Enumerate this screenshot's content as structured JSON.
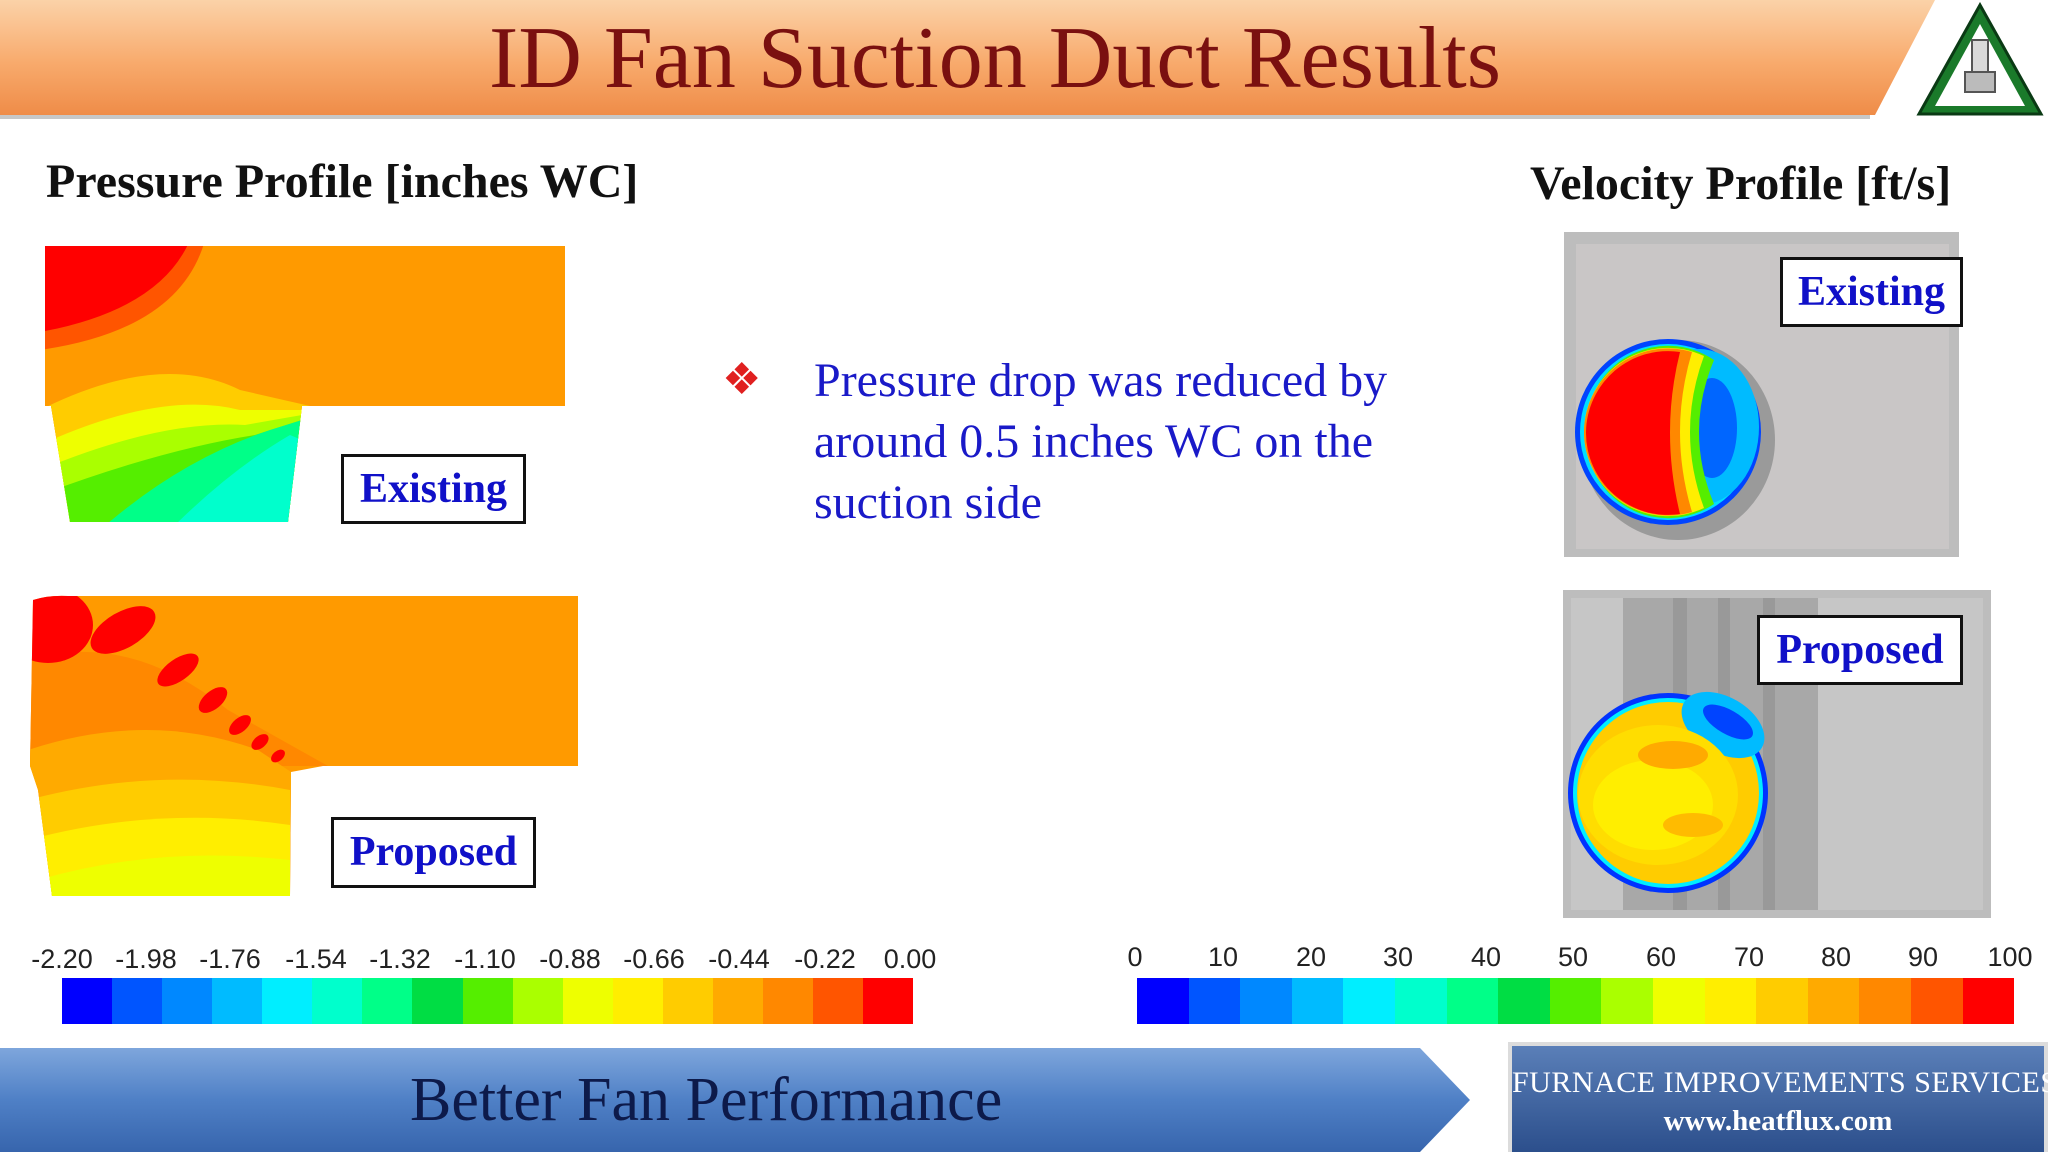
{
  "title": "ID Fan Suction Duct Results",
  "pressure": {
    "heading": "Pressure Profile [inches WC]",
    "existing_label": "Existing",
    "proposed_label": "Proposed",
    "scale_ticks": [
      "-2.20",
      "-1.98",
      "-1.76",
      "-1.54",
      "-1.32",
      "-1.10",
      "-0.88",
      "-0.66",
      "-0.44",
      "-0.22",
      "0.00"
    ]
  },
  "velocity": {
    "heading": "Velocity Profile [ft/s]",
    "existing_label": "Existing",
    "proposed_label": "Proposed",
    "scale_ticks": [
      "0",
      "10",
      "20",
      "30",
      "40",
      "50",
      "60",
      "70",
      "80",
      "90",
      "100"
    ]
  },
  "bullet": {
    "icon": "diamond-bullet-icon",
    "text": "Pressure drop was reduced by around 0.5 inches WC on the suction side"
  },
  "footer": {
    "tagline": "Better Fan Performance",
    "company": "FURNACE IMPROVEMENTS SERVICES",
    "website": "www.heatflux.com"
  },
  "colors": {
    "title_text": "#7a1010",
    "bullet_text": "#1a1ac8",
    "label_text": "#1010c8",
    "title_band": "#f7a868",
    "footer_band": "#3c6fb8",
    "colormap": [
      "#0000ff",
      "#0055ff",
      "#0088ff",
      "#00bbff",
      "#00eeff",
      "#00ffcc",
      "#00ff88",
      "#00dd44",
      "#55ee00",
      "#aaff00",
      "#eeff00",
      "#ffee00",
      "#ffcc00",
      "#ffaa00",
      "#ff8800",
      "#ff5500",
      "#ff0000"
    ]
  }
}
